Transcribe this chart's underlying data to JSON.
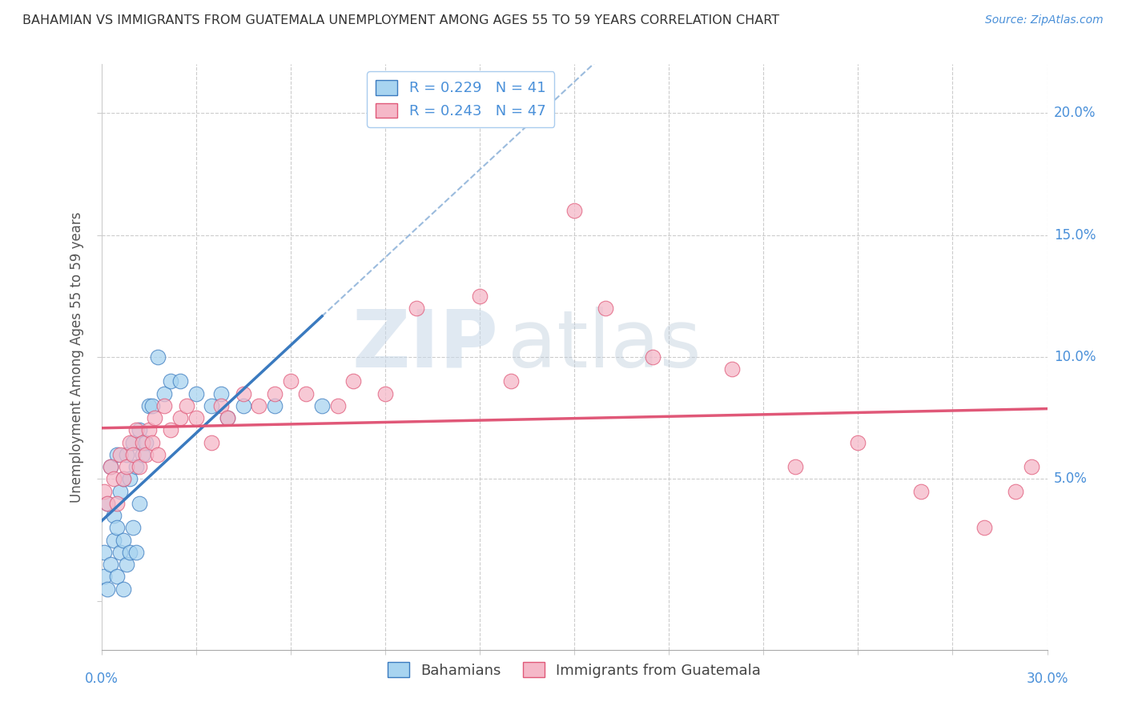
{
  "title": "BAHAMIAN VS IMMIGRANTS FROM GUATEMALA UNEMPLOYMENT AMONG AGES 55 TO 59 YEARS CORRELATION CHART",
  "source": "Source: ZipAtlas.com",
  "ylabel": "Unemployment Among Ages 55 to 59 years",
  "xlim": [
    0.0,
    0.3
  ],
  "ylim": [
    -0.02,
    0.22
  ],
  "yticks": [
    0.0,
    0.05,
    0.1,
    0.15,
    0.2
  ],
  "ytick_labels": [
    "",
    "5.0%",
    "10.0%",
    "15.0%",
    "20.0%"
  ],
  "legend_entry1": "R = 0.229   N = 41",
  "legend_entry2": "R = 0.243   N = 47",
  "legend_label1": "Bahamians",
  "legend_label2": "Immigrants from Guatemala",
  "color_blue": "#a8d4f0",
  "color_pink": "#f5b8c8",
  "line_color_blue": "#3a7abf",
  "line_color_pink": "#e05878",
  "trendline_color_gray": "#8ab0d8",
  "watermark_zip": "ZIP",
  "watermark_atlas": "atlas",
  "bahamian_x": [
    0.001,
    0.001,
    0.002,
    0.002,
    0.003,
    0.003,
    0.004,
    0.004,
    0.005,
    0.005,
    0.005,
    0.006,
    0.006,
    0.007,
    0.007,
    0.007,
    0.008,
    0.008,
    0.009,
    0.009,
    0.01,
    0.01,
    0.011,
    0.011,
    0.012,
    0.012,
    0.013,
    0.014,
    0.015,
    0.016,
    0.018,
    0.02,
    0.022,
    0.025,
    0.03,
    0.035,
    0.038,
    0.04,
    0.045,
    0.055,
    0.07
  ],
  "bahamian_y": [
    0.01,
    0.02,
    0.005,
    0.04,
    0.015,
    0.055,
    0.025,
    0.035,
    0.01,
    0.03,
    0.06,
    0.02,
    0.045,
    0.005,
    0.025,
    0.05,
    0.015,
    0.06,
    0.02,
    0.05,
    0.03,
    0.065,
    0.02,
    0.055,
    0.04,
    0.07,
    0.06,
    0.065,
    0.08,
    0.08,
    0.1,
    0.085,
    0.09,
    0.09,
    0.085,
    0.08,
    0.085,
    0.075,
    0.08,
    0.08,
    0.08
  ],
  "guatemala_x": [
    0.001,
    0.002,
    0.003,
    0.004,
    0.005,
    0.006,
    0.007,
    0.008,
    0.009,
    0.01,
    0.011,
    0.012,
    0.013,
    0.014,
    0.015,
    0.016,
    0.017,
    0.018,
    0.02,
    0.022,
    0.025,
    0.027,
    0.03,
    0.035,
    0.038,
    0.04,
    0.045,
    0.05,
    0.055,
    0.06,
    0.065,
    0.075,
    0.08,
    0.09,
    0.1,
    0.12,
    0.13,
    0.15,
    0.16,
    0.175,
    0.2,
    0.22,
    0.24,
    0.26,
    0.28,
    0.29,
    0.295
  ],
  "guatemala_y": [
    0.045,
    0.04,
    0.055,
    0.05,
    0.04,
    0.06,
    0.05,
    0.055,
    0.065,
    0.06,
    0.07,
    0.055,
    0.065,
    0.06,
    0.07,
    0.065,
    0.075,
    0.06,
    0.08,
    0.07,
    0.075,
    0.08,
    0.075,
    0.065,
    0.08,
    0.075,
    0.085,
    0.08,
    0.085,
    0.09,
    0.085,
    0.08,
    0.09,
    0.085,
    0.12,
    0.125,
    0.09,
    0.16,
    0.12,
    0.1,
    0.095,
    0.055,
    0.065,
    0.045,
    0.03,
    0.045,
    0.055
  ]
}
